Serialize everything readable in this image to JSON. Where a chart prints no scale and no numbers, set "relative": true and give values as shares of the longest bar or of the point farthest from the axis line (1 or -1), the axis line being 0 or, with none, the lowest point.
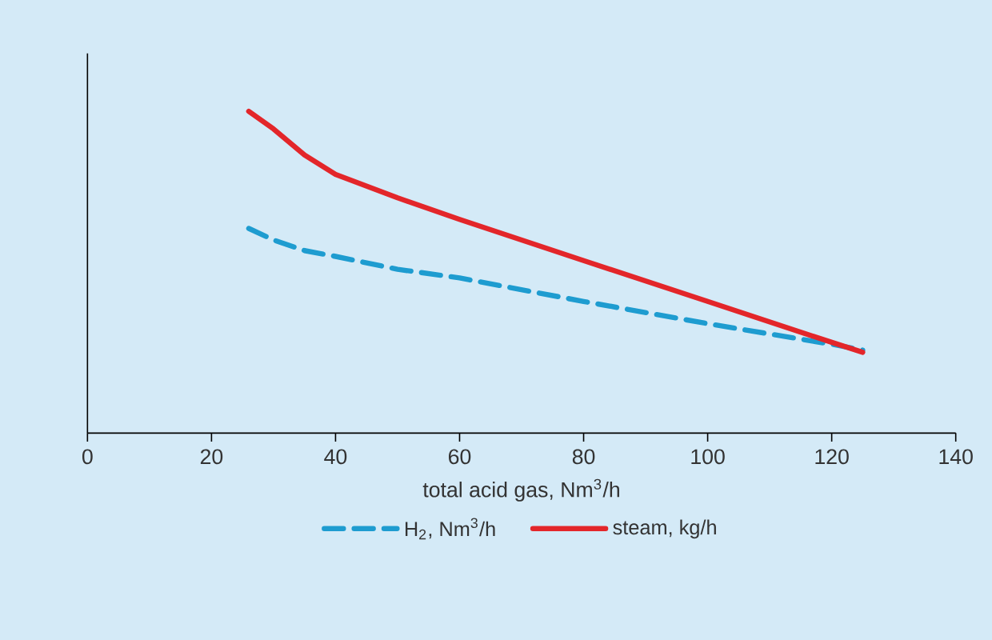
{
  "chart_data": {
    "type": "line",
    "relative": true,
    "xlabel": "total acid gas, Nm$^{3}$/h",
    "xlim": [
      0,
      140
    ],
    "xticks": [
      0,
      20,
      40,
      60,
      80,
      100,
      120,
      140
    ],
    "legend": "bottom",
    "grid": false,
    "marker": "none",
    "series": [
      {
        "name": "H$_{2}$, Nm$^{3}$/h",
        "color": "#1e9cd0",
        "line_style": "dashed",
        "x": [
          26,
          30,
          35,
          40,
          50,
          60,
          80,
          100,
          120,
          125
        ],
        "values": [
          0.636,
          0.6,
          0.567,
          0.549,
          0.509,
          0.482,
          0.409,
          0.34,
          0.276,
          0.258
        ]
      },
      {
        "name": "steam, kg/h",
        "color": "#e3262a",
        "line_style": "solid",
        "x": [
          26,
          30,
          35,
          40,
          50,
          60,
          80,
          100,
          120,
          125
        ],
        "values": [
          1.0,
          0.945,
          0.864,
          0.804,
          0.731,
          0.664,
          0.536,
          0.409,
          0.282,
          0.251
        ]
      }
    ]
  }
}
